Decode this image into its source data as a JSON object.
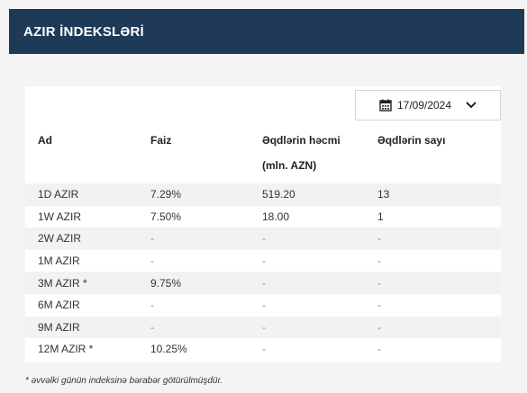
{
  "header": {
    "title": "AZIR İNDEKSLƏRİ"
  },
  "date_picker": {
    "value": "17/09/2024",
    "icon": "calendar-icon",
    "chevron": "chevron-down-icon"
  },
  "table": {
    "columns": [
      "Ad",
      "Faiz",
      "Əqdlərin həcmi (mln. AZN)",
      "Əqdlərin sayı"
    ],
    "rows": [
      [
        "1D AZIR",
        "7.29%",
        "519.20",
        "13"
      ],
      [
        "1W AZIR",
        "7.50%",
        "18.00",
        "1"
      ],
      [
        "2W AZIR",
        "-",
        "-",
        "-"
      ],
      [
        "1M AZIR",
        "-",
        "-",
        "-"
      ],
      [
        "3M AZIR *",
        "9.75%",
        "-",
        "-"
      ],
      [
        "6M AZIR",
        "-",
        "-",
        "-"
      ],
      [
        "9M AZIR",
        "-",
        "-",
        "-"
      ],
      [
        "12M AZIR *",
        "10.25%",
        "-",
        "-"
      ]
    ]
  },
  "footnote": "* əvvəlki günün indeksinə bərabər götürülmüşdür.",
  "colors": {
    "header_bg": "#1f3a57",
    "stripe": "#f2f2f2"
  }
}
